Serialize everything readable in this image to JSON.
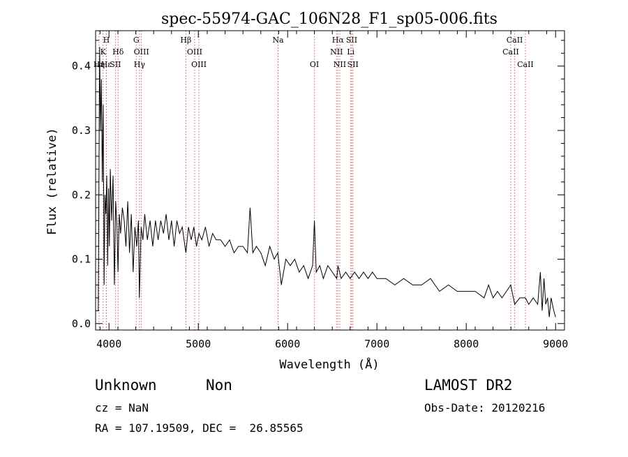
{
  "chart_data": {
    "type": "line",
    "title": "spec-55974-GAC_106N28_F1_sp05-006.fits",
    "xlabel": "Wavelength (Å)",
    "ylabel": "Flux (relative)",
    "xlim": [
      3850,
      9100
    ],
    "ylim": [
      -0.01,
      0.455
    ],
    "xticks": [
      4000,
      5000,
      6000,
      7000,
      8000,
      9000
    ],
    "yticks": [
      0.0,
      0.1,
      0.2,
      0.3,
      0.4
    ],
    "ytick_labels": [
      "0.0",
      "0.1",
      "0.2",
      "0.3",
      "0.4"
    ],
    "grid": false,
    "spectrum_color": "#000000",
    "line_marker_color": "#d06060",
    "spectrum": {
      "x": [
        3880,
        3895,
        3905,
        3915,
        3925,
        3935,
        3945,
        3955,
        3965,
        3975,
        3985,
        3995,
        4005,
        4015,
        4030,
        4045,
        4060,
        4075,
        4090,
        4101,
        4115,
        4130,
        4150,
        4170,
        4190,
        4210,
        4230,
        4250,
        4270,
        4290,
        4310,
        4330,
        4340,
        4360,
        4380,
        4400,
        4430,
        4460,
        4490,
        4520,
        4550,
        4580,
        4610,
        4640,
        4670,
        4700,
        4730,
        4760,
        4790,
        4820,
        4861,
        4890,
        4920,
        4950,
        4980,
        5007,
        5040,
        5080,
        5120,
        5160,
        5200,
        5250,
        5300,
        5350,
        5400,
        5450,
        5500,
        5550,
        5580,
        5610,
        5650,
        5700,
        5750,
        5800,
        5850,
        5890,
        5930,
        5980,
        6030,
        6080,
        6130,
        6180,
        6230,
        6280,
        6300,
        6320,
        6360,
        6400,
        6450,
        6500,
        6550,
        6563,
        6600,
        6650,
        6700,
        6750,
        6800,
        6850,
        6900,
        6950,
        7000,
        7100,
        7200,
        7300,
        7400,
        7500,
        7600,
        7700,
        7800,
        7900,
        8000,
        8100,
        8200,
        8250,
        8300,
        8350,
        8400,
        8450,
        8498,
        8542,
        8600,
        8662,
        8700,
        8750,
        8800,
        8830,
        8850,
        8870,
        8890,
        8910,
        8930,
        8950,
        8980,
        9000
      ],
      "y": [
        0.02,
        0.43,
        0.3,
        0.38,
        0.22,
        0.34,
        0.06,
        0.2,
        0.17,
        0.23,
        0.09,
        0.21,
        0.12,
        0.24,
        0.16,
        0.23,
        0.06,
        0.19,
        0.15,
        0.08,
        0.17,
        0.14,
        0.18,
        0.16,
        0.12,
        0.19,
        0.11,
        0.17,
        0.08,
        0.15,
        0.12,
        0.16,
        0.04,
        0.15,
        0.13,
        0.17,
        0.13,
        0.16,
        0.12,
        0.16,
        0.13,
        0.16,
        0.14,
        0.17,
        0.13,
        0.16,
        0.12,
        0.16,
        0.14,
        0.15,
        0.11,
        0.15,
        0.13,
        0.15,
        0.12,
        0.14,
        0.13,
        0.15,
        0.12,
        0.14,
        0.13,
        0.13,
        0.12,
        0.13,
        0.11,
        0.12,
        0.12,
        0.11,
        0.18,
        0.11,
        0.12,
        0.11,
        0.09,
        0.12,
        0.1,
        0.11,
        0.06,
        0.1,
        0.09,
        0.1,
        0.08,
        0.09,
        0.07,
        0.09,
        0.16,
        0.08,
        0.09,
        0.07,
        0.09,
        0.08,
        0.07,
        0.09,
        0.07,
        0.08,
        0.07,
        0.08,
        0.07,
        0.08,
        0.07,
        0.08,
        0.07,
        0.07,
        0.06,
        0.07,
        0.06,
        0.06,
        0.07,
        0.05,
        0.06,
        0.05,
        0.05,
        0.05,
        0.04,
        0.06,
        0.04,
        0.05,
        0.04,
        0.05,
        0.06,
        0.03,
        0.04,
        0.04,
        0.03,
        0.04,
        0.03,
        0.08,
        0.02,
        0.07,
        0.03,
        0.04,
        0.01,
        0.04,
        0.02,
        0.01
      ]
    },
    "line_markers": [
      {
        "wavelength": 3934,
        "label": "K",
        "row": 1
      },
      {
        "wavelength": 3889,
        "label": "Hη",
        "row": 2
      },
      {
        "wavelength": 3970,
        "label": "H",
        "row": 0
      },
      {
        "wavelength": 3970,
        "label": "Hε",
        "row": 2
      },
      {
        "wavelength": 4102,
        "label": "Hδ",
        "row": 1
      },
      {
        "wavelength": 4072,
        "label": "SII",
        "row": 2
      },
      {
        "wavelength": 4305,
        "label": "G",
        "row": 0
      },
      {
        "wavelength": 4363,
        "label": "OIII",
        "row": 1
      },
      {
        "wavelength": 4341,
        "label": "Hγ",
        "row": 2
      },
      {
        "wavelength": 4861,
        "label": "Hβ",
        "row": 0
      },
      {
        "wavelength": 4959,
        "label": "OIII",
        "row": 1
      },
      {
        "wavelength": 5007,
        "label": "OIII",
        "row": 2
      },
      {
        "wavelength": 5893,
        "label": "Na",
        "row": 0
      },
      {
        "wavelength": 6300,
        "label": "OI",
        "row": 2
      },
      {
        "wavelength": 6563,
        "label": "Hα",
        "row": 0
      },
      {
        "wavelength": 6548,
        "label": "NII",
        "row": 1
      },
      {
        "wavelength": 6584,
        "label": "NII",
        "row": 2
      },
      {
        "wavelength": 6717,
        "label": "SII",
        "row": 0
      },
      {
        "wavelength": 6707,
        "label": "Li",
        "row": 1
      },
      {
        "wavelength": 6731,
        "label": "SII",
        "row": 2
      },
      {
        "wavelength": 8542,
        "label": "CaII",
        "row": 0
      },
      {
        "wavelength": 8498,
        "label": "CaII",
        "row": 1
      },
      {
        "wavelength": 8662,
        "label": "CaII",
        "row": 2
      }
    ]
  },
  "footer": {
    "class_label": "Unknown",
    "subclass_label": "Non",
    "survey": "LAMOST DR2",
    "cz": "cz = NaN",
    "obs_date": "Obs-Date: 20120216",
    "coords": "RA = 107.19509, DEC =  26.85565"
  }
}
